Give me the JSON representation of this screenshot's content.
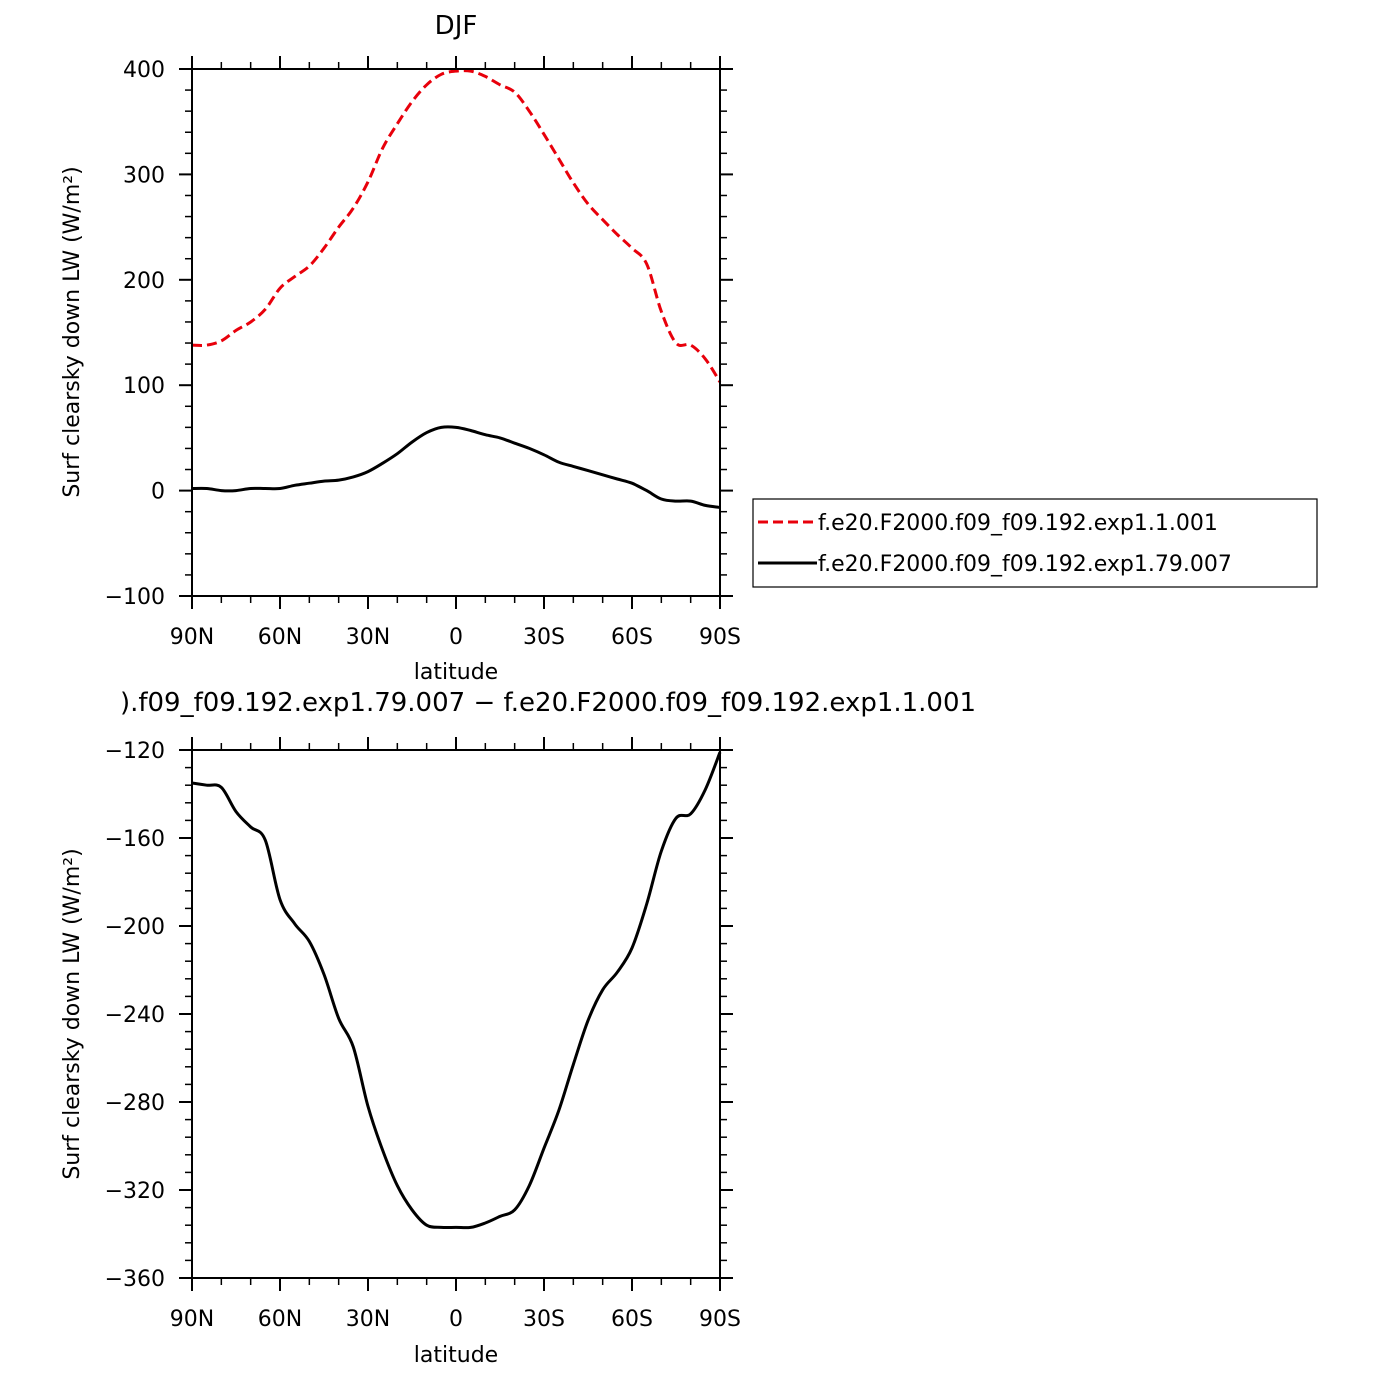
{
  "chart_data": [
    {
      "type": "line",
      "title": "DJF",
      "xlabel": "latitude",
      "ylabel": "Surf clearsky down LW (W/m²)",
      "xlim": [
        90,
        -90
      ],
      "ylim": [
        -100,
        400
      ],
      "xtick_labels": [
        "90N",
        "60N",
        "30N",
        "0",
        "30S",
        "60S",
        "90S"
      ],
      "ytick_labels": [
        "400",
        "300",
        "200",
        "100",
        "0",
        "−100"
      ],
      "legend_placement": "right",
      "x": [
        90,
        85,
        80,
        75,
        70,
        65,
        60,
        55,
        50,
        45,
        40,
        35,
        30,
        25,
        20,
        15,
        10,
        5,
        0,
        -5,
        -10,
        -15,
        -20,
        -25,
        -30,
        -35,
        -40,
        -45,
        -50,
        -55,
        -60,
        -65,
        -70,
        -75,
        -80,
        -85,
        -90
      ],
      "series": [
        {
          "name": "f.e20.F2000.f09_f09.192.exp1.1.001",
          "color": "#e8000b",
          "style": "dashed",
          "values": [
            138,
            138,
            142,
            152,
            160,
            172,
            192,
            203,
            213,
            230,
            250,
            268,
            293,
            325,
            348,
            369,
            385,
            395,
            398,
            398,
            393,
            385,
            378,
            360,
            338,
            315,
            292,
            272,
            257,
            243,
            230,
            215,
            170,
            140,
            138,
            125,
            103
          ]
        },
        {
          "name": "f.e20.F2000.f09_f09.192.exp1.79.007",
          "color": "#000000",
          "style": "solid",
          "values": [
            2,
            2,
            0,
            0,
            2,
            2,
            2,
            5,
            7,
            9,
            10,
            13,
            18,
            26,
            35,
            46,
            55,
            60,
            60,
            57,
            53,
            50,
            45,
            40,
            34,
            27,
            23,
            19,
            15,
            11,
            7,
            0,
            -8,
            -10,
            -10,
            -14,
            -16
          ]
        }
      ]
    },
    {
      "type": "line",
      "title": ").f09_f09.192.exp1.79.007 − f.e20.F2000.f09_f09.192.exp1.1.001",
      "xlabel": "latitude",
      "ylabel": "Surf clearsky down LW (W/m²)",
      "xlim": [
        90,
        -90
      ],
      "ylim": [
        -360,
        -120
      ],
      "xtick_labels": [
        "90N",
        "60N",
        "30N",
        "0",
        "30S",
        "60S",
        "90S"
      ],
      "ytick_labels": [
        "−120",
        "−160",
        "−200",
        "−240",
        "−280",
        "−320",
        "−360"
      ],
      "x": [
        90,
        85,
        80,
        75,
        70,
        65,
        60,
        55,
        50,
        45,
        40,
        35,
        30,
        25,
        20,
        15,
        10,
        5,
        0,
        -5,
        -10,
        -15,
        -20,
        -25,
        -30,
        -35,
        -40,
        -45,
        -50,
        -55,
        -60,
        -65,
        -70,
        -75,
        -80,
        -85,
        -90
      ],
      "series": [
        {
          "color": "#000000",
          "style": "solid",
          "values": [
            -135,
            -136,
            -137,
            -148,
            -155,
            -161,
            -188,
            -199,
            -207,
            -222,
            -242,
            -255,
            -282,
            -302,
            -318,
            -329,
            -336,
            -337,
            -337,
            -337,
            -335,
            -332,
            -329,
            -318,
            -301,
            -284,
            -263,
            -243,
            -229,
            -221,
            -210,
            -190,
            -166,
            -151,
            -149,
            -138,
            -121
          ]
        }
      ]
    }
  ]
}
